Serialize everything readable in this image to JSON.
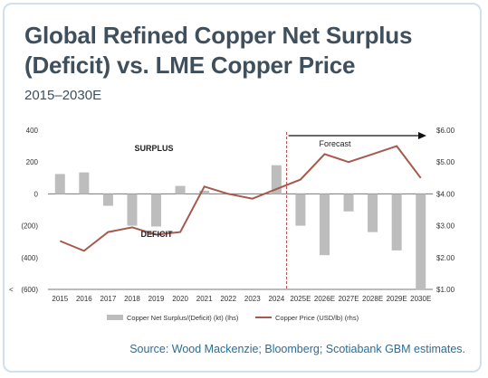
{
  "header": {
    "title_line1": "Global Refined Copper Net Surplus",
    "title_line2": "(Deficit) vs. LME Copper Price",
    "subtitle": "2015–2030E"
  },
  "source": "Source: Wood Mackenzie; Bloomberg; Scotiabank GBM estimates.",
  "colors": {
    "bars": "#bdbdbd",
    "line": "#a65a4e",
    "axis": "#777777",
    "forecast_divider": "#b04040",
    "text": "#3f4f5c",
    "source": "#2a6d97"
  },
  "chart_data": {
    "type": "bar+line",
    "categories": [
      "2015",
      "2016",
      "2017",
      "2018",
      "2019",
      "2020",
      "2021",
      "2022",
      "2023",
      "2024",
      "2025E",
      "2026E",
      "2027E",
      "2028E",
      "2029E",
      "2030E"
    ],
    "series": [
      {
        "name": "Copper Net Surplus/(Deficit) (kt) (lhs)",
        "type": "bar",
        "axis": "left",
        "values": [
          125,
          135,
          -75,
          -200,
          -205,
          50,
          20,
          0,
          0,
          180,
          -200,
          -385,
          -110,
          -240,
          -355,
          -605
        ]
      },
      {
        "name": "Copper Price (USD/lb) (rhs)",
        "type": "line",
        "axis": "right",
        "values": [
          2.52,
          2.21,
          2.8,
          2.95,
          2.72,
          2.8,
          4.23,
          4.0,
          3.85,
          4.15,
          4.45,
          5.25,
          5.0,
          5.25,
          5.5,
          4.5
        ]
      }
    ],
    "left_axis": {
      "ylim": [
        -600,
        400
      ],
      "ticks": [
        400,
        200,
        0,
        -200,
        -400,
        -600
      ],
      "tick_labels": [
        "400",
        "200",
        "0",
        "(200)",
        "(400)",
        "(600)"
      ]
    },
    "right_axis": {
      "ylim": [
        1.0,
        6.0
      ],
      "ticks": [
        6,
        5,
        4,
        3,
        2,
        1
      ],
      "tick_labels": [
        "$6.00",
        "$5.00",
        "$4.00",
        "$3.00",
        "$2.00",
        "$1.00"
      ]
    },
    "annotations": {
      "surplus": "SURPLUS",
      "deficit": "DEFICIT",
      "forecast": "Forecast",
      "left_edge_mark": "<"
    },
    "legend_position": "bottom",
    "grid": false
  }
}
